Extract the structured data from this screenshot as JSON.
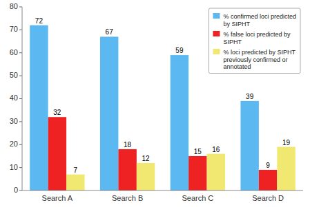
{
  "chart_data": {
    "type": "bar",
    "categories": [
      "Search A",
      "Search B",
      "Search C",
      "Search D"
    ],
    "series": [
      {
        "name": "% confirmed loci predicted\nby SIPHT",
        "color": "#5BB8F0",
        "values": [
          72,
          67,
          59,
          39
        ]
      },
      {
        "name": "% false loci predicted by\nSIPHT",
        "color": "#EE2222",
        "values": [
          32,
          18,
          15,
          9
        ]
      },
      {
        "name": "% loci predicted by SIPHT\npreviously confirmed or\nannotated",
        "color": "#F0E870",
        "values": [
          7,
          12,
          16,
          19
        ]
      }
    ],
    "ylim": [
      0,
      80
    ],
    "yticks": [
      0,
      10,
      20,
      30,
      40,
      50,
      60,
      70,
      80
    ],
    "grid": false,
    "legend": "upper right",
    "data_labels": true
  }
}
